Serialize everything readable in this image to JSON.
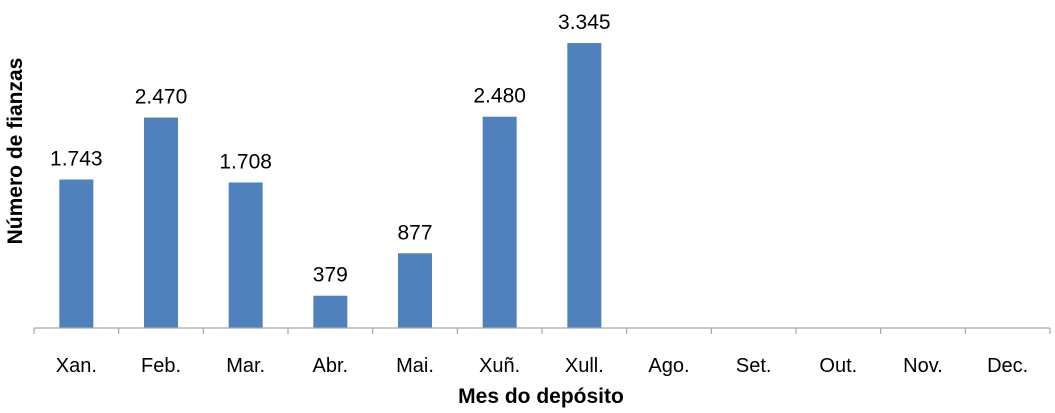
{
  "chart_data": {
    "type": "bar",
    "title": "",
    "xlabel": "Mes do depósito",
    "ylabel": "Número de fianzas",
    "categories": [
      "Xan.",
      "Feb.",
      "Mar.",
      "Abr.",
      "Mai.",
      "Xuñ.",
      "Xull.",
      "Ago.",
      "Set.",
      "Out.",
      "Nov.",
      "Dec."
    ],
    "values": [
      1743,
      2470,
      1708,
      379,
      877,
      2480,
      3345,
      null,
      null,
      null,
      null,
      null
    ],
    "data_labels": [
      "1.743",
      "2.470",
      "1.708",
      "379",
      "877",
      "2.480",
      "3.345",
      "",
      "",
      "",
      "",
      ""
    ],
    "ylim": [
      0,
      3345
    ],
    "grid": false,
    "legend": "none",
    "bar_color": "#4f81bd",
    "axis_color": "#a6a6a6"
  }
}
